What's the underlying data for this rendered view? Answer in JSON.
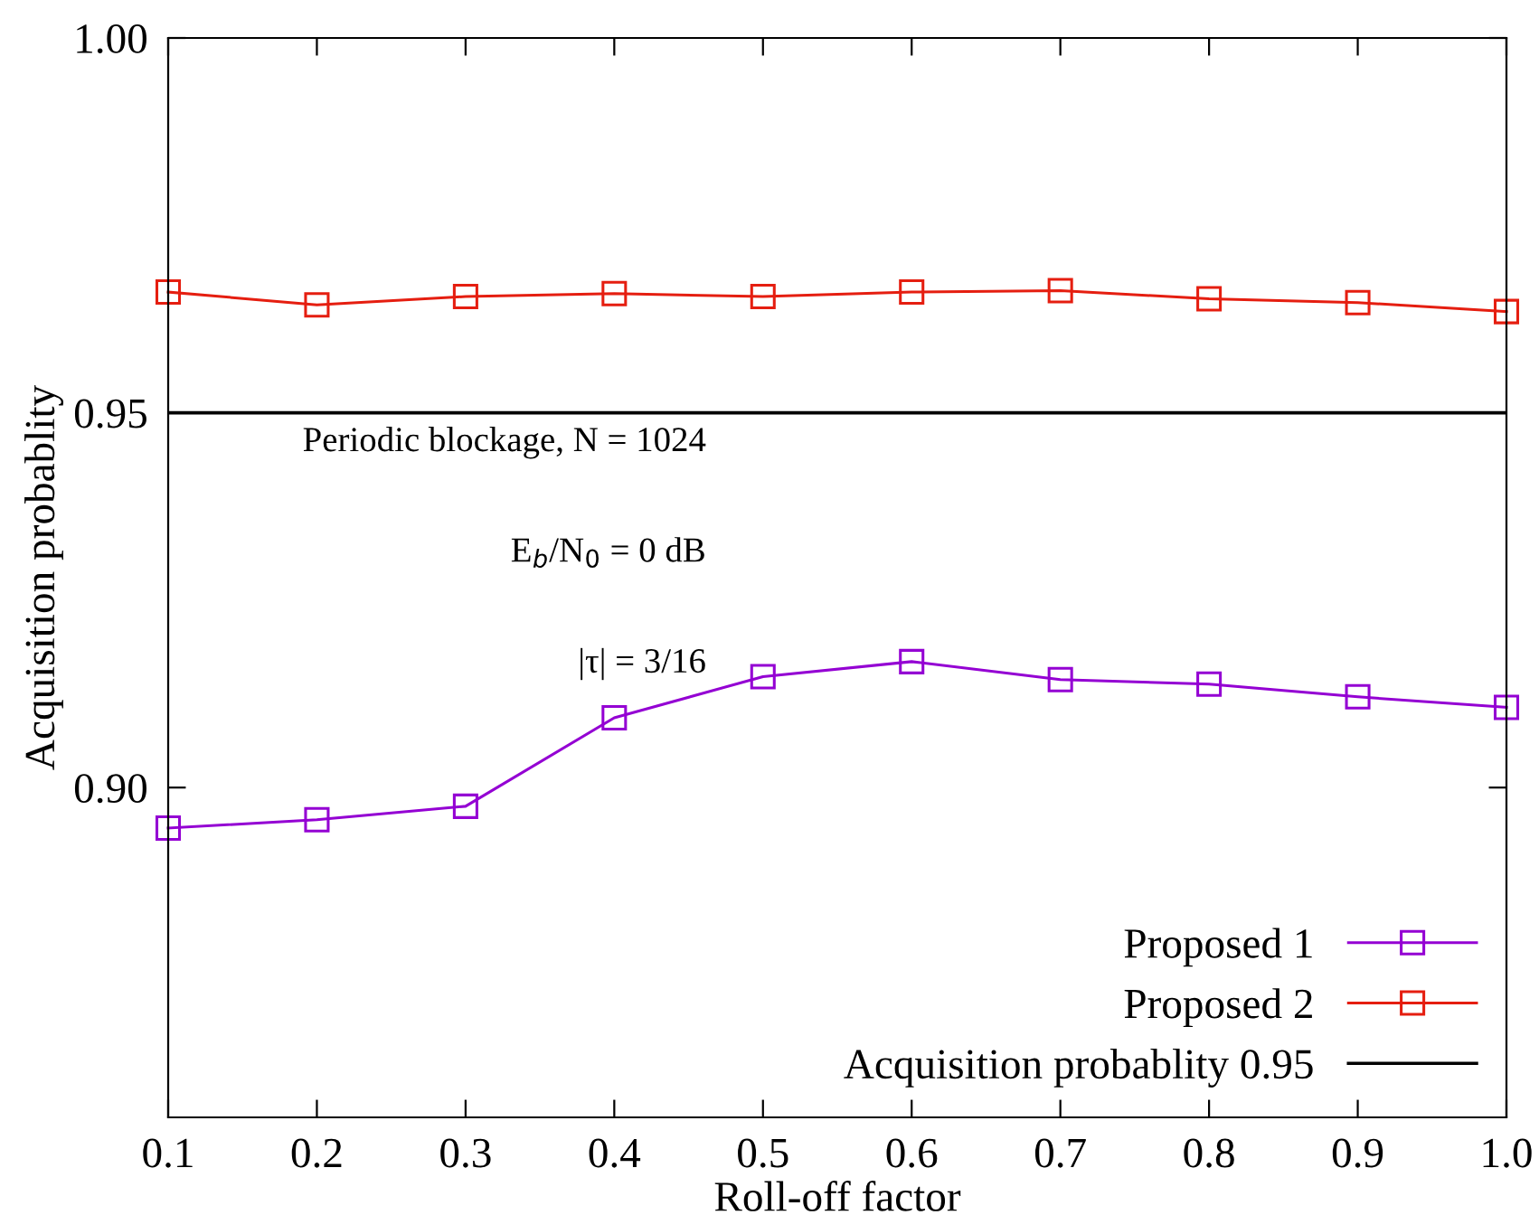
{
  "chart_data": {
    "type": "line",
    "xlabel": "Roll-off factor",
    "ylabel": "Acquisition probablity",
    "x": [
      0.1,
      0.2,
      0.3,
      0.4,
      0.5,
      0.6,
      0.7,
      0.8,
      0.9,
      1.0
    ],
    "series": [
      {
        "name": "Proposed 1",
        "color": "#9400d3",
        "values": [
          0.8946,
          0.8957,
          0.8975,
          0.9093,
          0.9148,
          0.9168,
          0.9144,
          0.9138,
          0.9121,
          0.9107
        ]
      },
      {
        "name": "Proposed 2",
        "color": "#e51e10",
        "values": [
          0.9661,
          0.9644,
          0.9655,
          0.9659,
          0.9655,
          0.9661,
          0.9663,
          0.9652,
          0.9647,
          0.9635
        ]
      }
    ],
    "ref_lines": [
      {
        "axis": "y",
        "value": 0.95,
        "label": "Acquisition probablity 0.95",
        "color": "#000000"
      }
    ],
    "annotations": [
      "Periodic blockage, N = 1024",
      "E$_{b}$/N$_{0}$ = 0 dB",
      "|τ| = 3/16"
    ],
    "xlim": [
      0.1,
      1.0
    ],
    "xticks": [
      0.1,
      0.2,
      0.3,
      0.4,
      0.5,
      0.6,
      0.7,
      0.8,
      0.9,
      {
        "value": 1.0,
        "label": "1.0"
      }
    ],
    "ylim": [
      0.856,
      1.0
    ],
    "yticks": [
      {
        "value": 0.9,
        "label": "0.90"
      },
      0.95,
      {
        "value": 1.0,
        "label": "1.00"
      }
    ],
    "marker": "square",
    "legend": "bottom right",
    "grid": false
  }
}
